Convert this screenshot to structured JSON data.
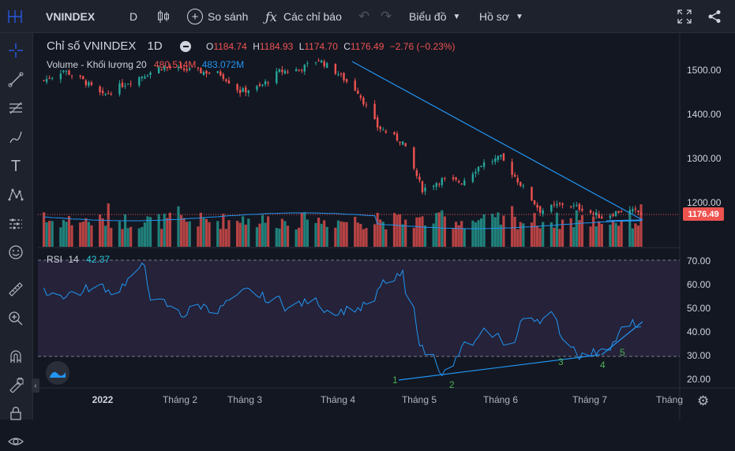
{
  "toolbar": {
    "symbol": "VNINDEX",
    "interval": "D",
    "compare_label": "So sánh",
    "indicators_label": "Các chỉ báo",
    "chart_label": "Biểu đồ",
    "profile_label": "Hồ sơ"
  },
  "legend": {
    "title": "Chỉ số VNINDEX",
    "interval": "1D",
    "open_label": "O",
    "open": "1184.74",
    "high_label": "H",
    "high": "1184.93",
    "low_label": "L",
    "low": "1174.70",
    "close_label": "C",
    "close": "1176.49",
    "change": "−2.76 (−0.23%)",
    "volume_label": "Volume - Khối lượng 20",
    "volume_value": "480.514M",
    "volume_ma": "483.072M",
    "rsi_label": "RSI",
    "rsi_period": "14",
    "rsi_value": "42.37"
  },
  "price_axis": [
    "1500.00",
    "1400.00",
    "1300.00",
    "1200.00"
  ],
  "current_price": "1176.49",
  "rsi_axis": [
    "70.00",
    "60.00",
    "50.00",
    "40.00",
    "30.00",
    "20.00"
  ],
  "time_axis": [
    "2022",
    "Tháng 2",
    "Tháng 3",
    "Tháng 4",
    "Tháng 5",
    "Tháng 6",
    "Tháng 7",
    "Tháng"
  ],
  "rsi_annotations": [
    "1",
    "2",
    "3",
    "4",
    "5"
  ],
  "colors": {
    "up": "#26a69a",
    "down": "#ef5350",
    "trendline": "#2196f3",
    "rsi_line": "#2196f3",
    "rsi_band": "#2a2540",
    "background": "#131722"
  },
  "icons": {
    "left": [
      "crosshair-icon",
      "trendline-icon",
      "fib-icon",
      "brush-icon",
      "text-icon",
      "pattern-icon",
      "forecast-icon",
      "emoji-icon",
      "ruler-icon",
      "zoom-in-icon",
      "magnet-icon",
      "lock-drawing-icon",
      "lock-icon",
      "eye-icon"
    ]
  },
  "chart_data": {
    "type": "candlestick",
    "title": "Chỉ số VNINDEX",
    "x_range": [
      "2021-12",
      "2022-08"
    ],
    "price_range": [
      1150,
      1550
    ],
    "close_path": [
      [
        "2021-12-28",
        1475
      ],
      [
        "2022-01-04",
        1498
      ],
      [
        "2022-01-11",
        1475
      ],
      [
        "2022-01-18",
        1440
      ],
      [
        "2022-01-25",
        1465
      ],
      [
        "2022-02-08",
        1505
      ],
      [
        "2022-02-15",
        1500
      ],
      [
        "2022-02-22",
        1495
      ],
      [
        "2022-03-01",
        1490
      ],
      [
        "2022-03-08",
        1450
      ],
      [
        "2022-03-15",
        1460
      ],
      [
        "2022-03-22",
        1495
      ],
      [
        "2022-03-29",
        1500
      ],
      [
        "2022-04-05",
        1522
      ],
      [
        "2022-04-12",
        1490
      ],
      [
        "2022-04-19",
        1450
      ],
      [
        "2022-04-26",
        1370
      ],
      [
        "2022-05-05",
        1335
      ],
      [
        "2022-05-12",
        1228
      ],
      [
        "2022-05-19",
        1250
      ],
      [
        "2022-05-26",
        1245
      ],
      [
        "2022-06-02",
        1285
      ],
      [
        "2022-06-09",
        1300
      ],
      [
        "2022-06-16",
        1240
      ],
      [
        "2022-06-23",
        1180
      ],
      [
        "2022-07-01",
        1195
      ],
      [
        "2022-07-08",
        1185
      ],
      [
        "2022-07-15",
        1165
      ],
      [
        "2022-07-22",
        1180
      ],
      [
        "2022-07-29",
        1176.49
      ]
    ],
    "rsi": {
      "period": 14,
      "current": 42.37,
      "levels": [
        70,
        30
      ],
      "range": [
        15,
        75
      ]
    }
  }
}
